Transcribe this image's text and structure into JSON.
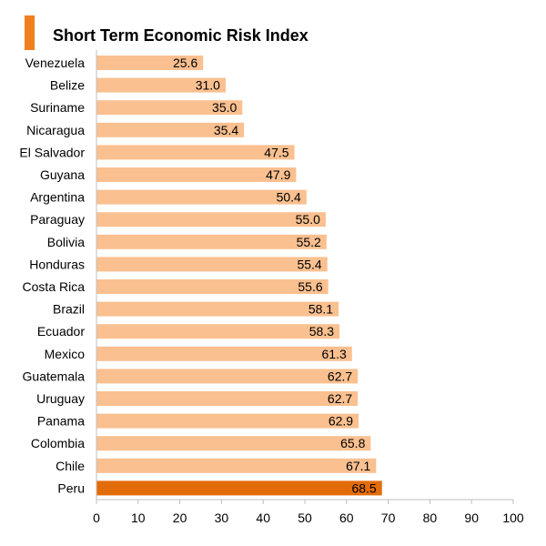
{
  "accent_color": "#f07f1e",
  "chart_data": {
    "type": "bar",
    "orientation": "horizontal",
    "title": "Short Term Economic Risk Index",
    "categories": [
      "Venezuela",
      "Belize",
      "Suriname",
      "Nicaragua",
      "El Salvador",
      "Guyana",
      "Argentina",
      "Paraguay",
      "Bolivia",
      "Honduras",
      "Costa Rica",
      "Brazil",
      "Ecuador",
      "Mexico",
      "Guatemala",
      "Uruguay",
      "Panama",
      "Colombia",
      "Chile",
      "Peru"
    ],
    "values": [
      25.6,
      31.0,
      35.0,
      35.4,
      47.5,
      47.9,
      50.4,
      55.0,
      55.2,
      55.4,
      55.6,
      58.1,
      58.3,
      61.3,
      62.7,
      62.7,
      62.9,
      65.8,
      67.1,
      68.5
    ],
    "data_labels": [
      "25.6",
      "31.0",
      "35.0",
      "35.4",
      "47.5",
      "47.9",
      "50.4",
      "55.0",
      "55.2",
      "55.4",
      "55.6",
      "58.1",
      "58.3",
      "61.3",
      "62.7",
      "62.7",
      "62.9",
      "65.8",
      "67.1",
      "68.5"
    ],
    "xlim": [
      0,
      100
    ],
    "x_ticks": [
      "0",
      "10",
      "20",
      "30",
      "40",
      "50",
      "60",
      "70",
      "80",
      "90",
      "100"
    ],
    "grid": false,
    "bar_color": "#fac090",
    "highlight": {
      "category": "Peru",
      "color": "#e36c0a"
    }
  }
}
